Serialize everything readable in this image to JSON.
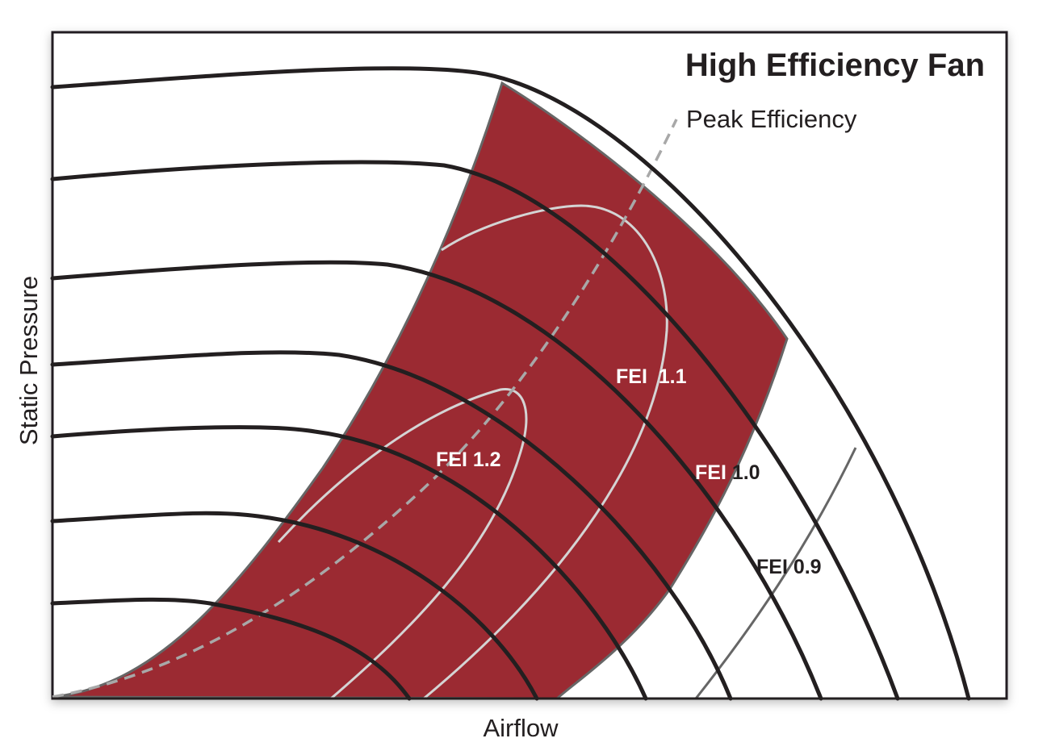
{
  "title": "High Efficiency Fan",
  "x_axis_label": "Airflow",
  "y_axis_label": "Static Pressure",
  "peak_efficiency_label": "Peak Efficiency",
  "fei_labels": {
    "fei_1_2": "FEI 1.2",
    "fei_1_1": "FEI  1.1",
    "fei_1_0": "FEI 1.0",
    "fei_0_9": "FEI 0.9"
  },
  "colors": {
    "high_efficiency_region": "#9b2a32",
    "fan_curves": "#231f20",
    "fei_contours": "#d4d4d4",
    "peak_efficiency_line": "#a8a8a8"
  }
}
